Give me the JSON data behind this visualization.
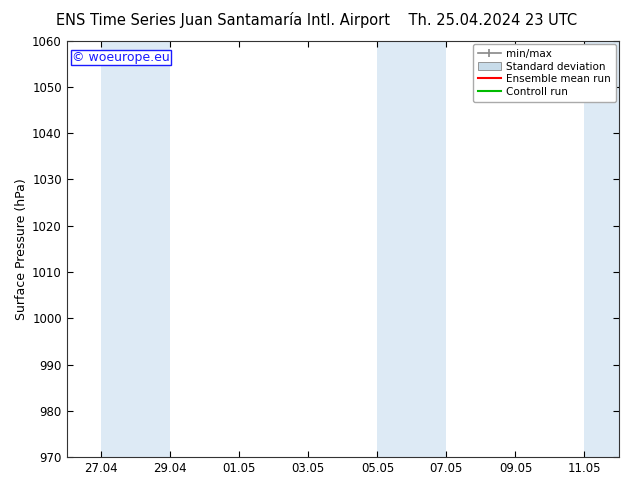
{
  "title_left": "ENS Time Series Juan Santamaría Intl. Airport",
  "title_right": "Th. 25.04.2024 23 UTC",
  "ylabel": "Surface Pressure (hPa)",
  "ylim": [
    970,
    1060
  ],
  "yticks": [
    970,
    980,
    990,
    1000,
    1010,
    1020,
    1030,
    1040,
    1050,
    1060
  ],
  "watermark": "© woeurope.eu",
  "watermark_color": "#1a1aff",
  "bg_color": "#ffffff",
  "plot_bg_color": "#ffffff",
  "shade_color": "#ddeaf5",
  "xtick_labels": [
    "27.04",
    "29.04",
    "01.05",
    "03.05",
    "05.05",
    "07.05",
    "09.05",
    "11.05"
  ],
  "xtick_positions": [
    1,
    3,
    5,
    7,
    9,
    11,
    13,
    15
  ],
  "xlim": [
    0,
    16
  ],
  "shaded_intervals": [
    [
      1,
      3
    ],
    [
      9,
      11
    ],
    [
      15,
      16
    ]
  ],
  "legend_items": [
    {
      "label": "min/max",
      "color": "#aaaaaa",
      "type": "errorbar"
    },
    {
      "label": "Standard deviation",
      "color": "#c8dcea",
      "type": "box"
    },
    {
      "label": "Ensemble mean run",
      "color": "#ff0000",
      "type": "line"
    },
    {
      "label": "Controll run",
      "color": "#00bb00",
      "type": "line"
    }
  ],
  "title_fontsize": 10.5,
  "tick_fontsize": 8.5,
  "ylabel_fontsize": 9,
  "legend_fontsize": 7.5,
  "watermark_fontsize": 9
}
